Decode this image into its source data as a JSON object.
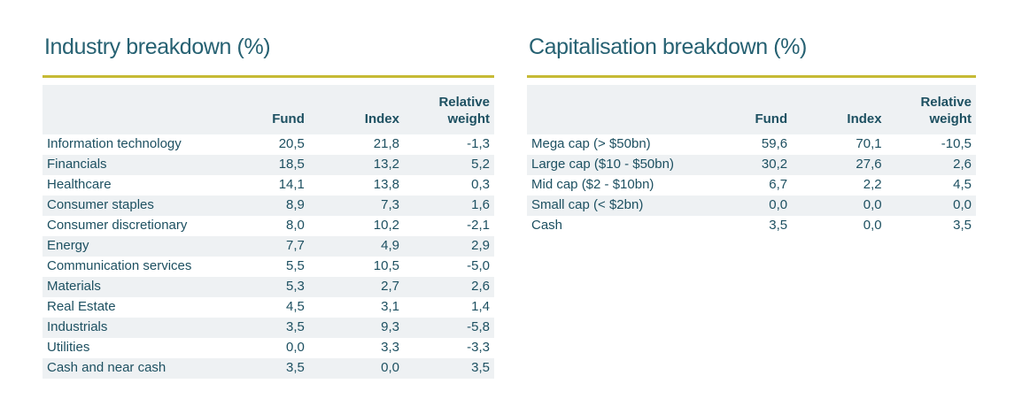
{
  "colors": {
    "title_text": "#266172",
    "body_text": "#1d5061",
    "accent_line": "#c6ba35",
    "row_stripe": "#eef1f3"
  },
  "tables": [
    {
      "id": "industry-breakdown",
      "title": "Industry breakdown (%)",
      "columns": [
        "",
        "Fund",
        "Index",
        "Relative weight"
      ],
      "rows": [
        [
          "Information technology",
          "20,5",
          "21,8",
          "-1,3"
        ],
        [
          "Financials",
          "18,5",
          "13,2",
          "5,2"
        ],
        [
          "Healthcare",
          "14,1",
          "13,8",
          "0,3"
        ],
        [
          "Consumer staples",
          "8,9",
          "7,3",
          "1,6"
        ],
        [
          "Consumer discretionary",
          "8,0",
          "10,2",
          "-2,1"
        ],
        [
          "Energy",
          "7,7",
          "4,9",
          "2,9"
        ],
        [
          "Communication services",
          "5,5",
          "10,5",
          "-5,0"
        ],
        [
          "Materials",
          "5,3",
          "2,7",
          "2,6"
        ],
        [
          "Real Estate",
          "4,5",
          "3,1",
          "1,4"
        ],
        [
          "Industrials",
          "3,5",
          "9,3",
          "-5,8"
        ],
        [
          "Utilities",
          "0,0",
          "3,3",
          "-3,3"
        ],
        [
          "Cash and near cash",
          "3,5",
          "0,0",
          "3,5"
        ]
      ]
    },
    {
      "id": "capitalisation-breakdown",
      "title": "Capitalisation breakdown (%)",
      "columns": [
        "",
        "Fund",
        "Index",
        "Relative weight"
      ],
      "rows": [
        [
          "Mega cap (> $50bn)",
          "59,6",
          "70,1",
          "-10,5"
        ],
        [
          "Large cap ($10 - $50bn)",
          "30,2",
          "27,6",
          "2,6"
        ],
        [
          "Mid cap ($2 - $10bn)",
          "6,7",
          "2,2",
          "4,5"
        ],
        [
          "Small cap (< $2bn)",
          "0,0",
          "0,0",
          "0,0"
        ],
        [
          "Cash",
          "3,5",
          "0,0",
          "3,5"
        ]
      ]
    }
  ]
}
